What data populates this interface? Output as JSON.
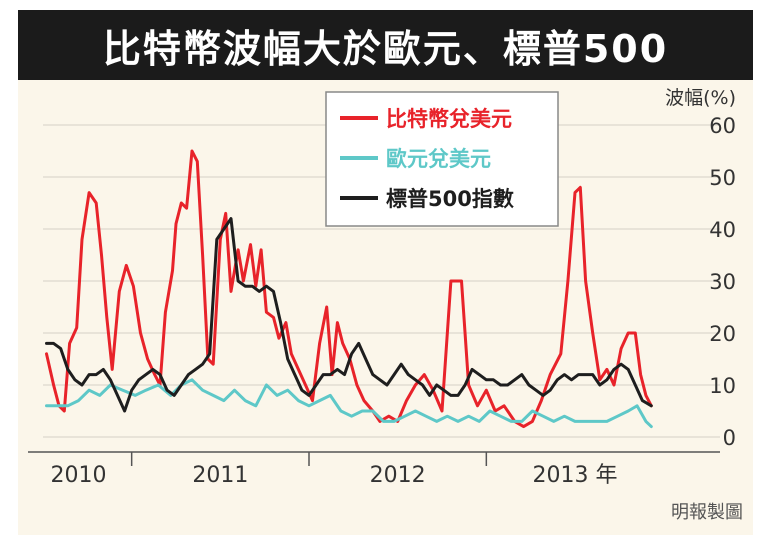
{
  "chart_data": {
    "type": "line",
    "title": "比特幣波幅大於歐元、標普500",
    "ylabel": "波幅(%)",
    "ylim": [
      0,
      60
    ],
    "yticks": [
      0,
      10,
      20,
      30,
      40,
      50,
      60
    ],
    "xlim": [
      2010.0,
      2013.75
    ],
    "x_tick_labels": [
      {
        "x": 2010.2,
        "label": "2010"
      },
      {
        "x": 2011.0,
        "label": "2011"
      },
      {
        "x": 2012.0,
        "label": "2012"
      },
      {
        "x": 2013.0,
        "label": "2013 年"
      }
    ],
    "x_dividers": [
      2010.5,
      2011.5,
      2012.5
    ],
    "grid": true,
    "legend_position": "top-center",
    "source": "明報製圖",
    "series": [
      {
        "name": "比特幣兌美元",
        "color": "#e8232a",
        "points": [
          [
            2010.02,
            16
          ],
          [
            2010.06,
            10
          ],
          [
            2010.09,
            6
          ],
          [
            2010.12,
            5
          ],
          [
            2010.15,
            18
          ],
          [
            2010.19,
            21
          ],
          [
            2010.22,
            38
          ],
          [
            2010.26,
            47
          ],
          [
            2010.3,
            45
          ],
          [
            2010.33,
            35
          ],
          [
            2010.36,
            23
          ],
          [
            2010.39,
            13
          ],
          [
            2010.43,
            28
          ],
          [
            2010.47,
            33
          ],
          [
            2010.51,
            29
          ],
          [
            2010.55,
            20
          ],
          [
            2010.59,
            15
          ],
          [
            2010.63,
            12
          ],
          [
            2010.66,
            10
          ],
          [
            2010.69,
            24
          ],
          [
            2010.73,
            32
          ],
          [
            2010.75,
            41
          ],
          [
            2010.78,
            45
          ],
          [
            2010.81,
            44
          ],
          [
            2010.84,
            55
          ],
          [
            2010.87,
            53
          ],
          [
            2010.9,
            35
          ],
          [
            2010.93,
            15
          ],
          [
            2010.96,
            14
          ],
          [
            2011.0,
            38
          ],
          [
            2011.03,
            43
          ],
          [
            2011.06,
            28
          ],
          [
            2011.1,
            36
          ],
          [
            2011.13,
            30
          ],
          [
            2011.17,
            37
          ],
          [
            2011.2,
            29
          ],
          [
            2011.23,
            36
          ],
          [
            2011.26,
            24
          ],
          [
            2011.3,
            23
          ],
          [
            2011.33,
            19
          ],
          [
            2011.37,
            22
          ],
          [
            2011.4,
            16
          ],
          [
            2011.44,
            13
          ],
          [
            2011.48,
            10
          ],
          [
            2011.52,
            7
          ],
          [
            2011.56,
            18
          ],
          [
            2011.6,
            25
          ],
          [
            2011.63,
            12
          ],
          [
            2011.66,
            22
          ],
          [
            2011.69,
            18
          ],
          [
            2011.73,
            15
          ],
          [
            2011.77,
            10
          ],
          [
            2011.81,
            7
          ],
          [
            2011.86,
            5
          ],
          [
            2011.9,
            3
          ],
          [
            2011.95,
            4
          ],
          [
            2012.0,
            3
          ],
          [
            2012.05,
            7
          ],
          [
            2012.1,
            10
          ],
          [
            2012.15,
            12
          ],
          [
            2012.2,
            9
          ],
          [
            2012.25,
            5
          ],
          [
            2012.3,
            30
          ],
          [
            2012.36,
            30
          ],
          [
            2012.4,
            10
          ],
          [
            2012.45,
            6
          ],
          [
            2012.5,
            9
          ],
          [
            2012.55,
            5
          ],
          [
            2012.6,
            6
          ],
          [
            2012.66,
            3
          ],
          [
            2012.71,
            2
          ],
          [
            2012.76,
            3
          ],
          [
            2012.81,
            7
          ],
          [
            2012.86,
            12
          ],
          [
            2012.92,
            16
          ],
          [
            2012.96,
            30
          ],
          [
            2013.0,
            47
          ],
          [
            2013.03,
            48
          ],
          [
            2013.06,
            30
          ],
          [
            2013.1,
            20
          ],
          [
            2013.14,
            11
          ],
          [
            2013.18,
            13
          ],
          [
            2013.22,
            10
          ],
          [
            2013.26,
            17
          ],
          [
            2013.3,
            20
          ],
          [
            2013.34,
            20
          ],
          [
            2013.37,
            12
          ],
          [
            2013.4,
            8
          ],
          [
            2013.43,
            6
          ]
        ]
      },
      {
        "name": "歐元兌美元",
        "color": "#5ec8c8",
        "points": [
          [
            2010.02,
            6
          ],
          [
            2010.08,
            6
          ],
          [
            2010.14,
            6
          ],
          [
            2010.2,
            7
          ],
          [
            2010.26,
            9
          ],
          [
            2010.32,
            8
          ],
          [
            2010.38,
            10
          ],
          [
            2010.45,
            9
          ],
          [
            2010.52,
            8
          ],
          [
            2010.58,
            9
          ],
          [
            2010.65,
            10
          ],
          [
            2010.72,
            8
          ],
          [
            2010.78,
            10
          ],
          [
            2010.84,
            11
          ],
          [
            2010.9,
            9
          ],
          [
            2010.96,
            8
          ],
          [
            2011.02,
            7
          ],
          [
            2011.08,
            9
          ],
          [
            2011.14,
            7
          ],
          [
            2011.2,
            6
          ],
          [
            2011.26,
            10
          ],
          [
            2011.32,
            8
          ],
          [
            2011.38,
            9
          ],
          [
            2011.44,
            7
          ],
          [
            2011.5,
            6
          ],
          [
            2011.56,
            7
          ],
          [
            2011.62,
            8
          ],
          [
            2011.68,
            5
          ],
          [
            2011.74,
            4
          ],
          [
            2011.8,
            5
          ],
          [
            2011.86,
            5
          ],
          [
            2011.92,
            3
          ],
          [
            2011.98,
            3
          ],
          [
            2012.04,
            4
          ],
          [
            2012.1,
            5
          ],
          [
            2012.16,
            4
          ],
          [
            2012.22,
            3
          ],
          [
            2012.28,
            4
          ],
          [
            2012.34,
            3
          ],
          [
            2012.4,
            4
          ],
          [
            2012.46,
            3
          ],
          [
            2012.52,
            5
          ],
          [
            2012.58,
            4
          ],
          [
            2012.64,
            3
          ],
          [
            2012.7,
            3
          ],
          [
            2012.76,
            5
          ],
          [
            2012.82,
            4
          ],
          [
            2012.88,
            3
          ],
          [
            2012.94,
            4
          ],
          [
            2013.0,
            3
          ],
          [
            2013.06,
            3
          ],
          [
            2013.12,
            3
          ],
          [
            2013.18,
            3
          ],
          [
            2013.24,
            4
          ],
          [
            2013.3,
            5
          ],
          [
            2013.35,
            6
          ],
          [
            2013.4,
            3
          ],
          [
            2013.43,
            2
          ]
        ]
      },
      {
        "name": "標普500指數",
        "color": "#1e1e1e",
        "points": [
          [
            2010.02,
            18
          ],
          [
            2010.06,
            18
          ],
          [
            2010.1,
            17
          ],
          [
            2010.14,
            13
          ],
          [
            2010.18,
            11
          ],
          [
            2010.22,
            10
          ],
          [
            2010.26,
            12
          ],
          [
            2010.3,
            12
          ],
          [
            2010.34,
            13
          ],
          [
            2010.38,
            11
          ],
          [
            2010.42,
            8
          ],
          [
            2010.46,
            5
          ],
          [
            2010.5,
            9
          ],
          [
            2010.54,
            11
          ],
          [
            2010.58,
            12
          ],
          [
            2010.62,
            13
          ],
          [
            2010.66,
            12
          ],
          [
            2010.7,
            9
          ],
          [
            2010.74,
            8
          ],
          [
            2010.78,
            10
          ],
          [
            2010.82,
            12
          ],
          [
            2010.86,
            13
          ],
          [
            2010.9,
            14
          ],
          [
            2010.94,
            16
          ],
          [
            2010.98,
            38
          ],
          [
            2011.02,
            40
          ],
          [
            2011.06,
            42
          ],
          [
            2011.1,
            30
          ],
          [
            2011.14,
            29
          ],
          [
            2011.18,
            29
          ],
          [
            2011.22,
            28
          ],
          [
            2011.26,
            29
          ],
          [
            2011.3,
            28
          ],
          [
            2011.34,
            22
          ],
          [
            2011.38,
            15
          ],
          [
            2011.42,
            12
          ],
          [
            2011.46,
            9
          ],
          [
            2011.5,
            8
          ],
          [
            2011.54,
            10
          ],
          [
            2011.58,
            12
          ],
          [
            2011.62,
            12
          ],
          [
            2011.66,
            13
          ],
          [
            2011.7,
            12
          ],
          [
            2011.74,
            16
          ],
          [
            2011.78,
            18
          ],
          [
            2011.82,
            15
          ],
          [
            2011.86,
            12
          ],
          [
            2011.9,
            11
          ],
          [
            2011.94,
            10
          ],
          [
            2011.98,
            12
          ],
          [
            2012.02,
            14
          ],
          [
            2012.06,
            12
          ],
          [
            2012.1,
            11
          ],
          [
            2012.14,
            10
          ],
          [
            2012.18,
            8
          ],
          [
            2012.22,
            10
          ],
          [
            2012.26,
            9
          ],
          [
            2012.3,
            8
          ],
          [
            2012.34,
            8
          ],
          [
            2012.38,
            10
          ],
          [
            2012.42,
            13
          ],
          [
            2012.46,
            12
          ],
          [
            2012.5,
            11
          ],
          [
            2012.54,
            11
          ],
          [
            2012.58,
            10
          ],
          [
            2012.62,
            10
          ],
          [
            2012.66,
            11
          ],
          [
            2012.7,
            12
          ],
          [
            2012.74,
            10
          ],
          [
            2012.78,
            9
          ],
          [
            2012.82,
            8
          ],
          [
            2012.86,
            9
          ],
          [
            2012.9,
            11
          ],
          [
            2012.94,
            12
          ],
          [
            2012.98,
            11
          ],
          [
            2013.02,
            12
          ],
          [
            2013.06,
            12
          ],
          [
            2013.1,
            12
          ],
          [
            2013.14,
            10
          ],
          [
            2013.18,
            11
          ],
          [
            2013.22,
            13
          ],
          [
            2013.26,
            14
          ],
          [
            2013.3,
            13
          ],
          [
            2013.34,
            10
          ],
          [
            2013.38,
            7
          ],
          [
            2013.43,
            6
          ]
        ]
      }
    ]
  }
}
